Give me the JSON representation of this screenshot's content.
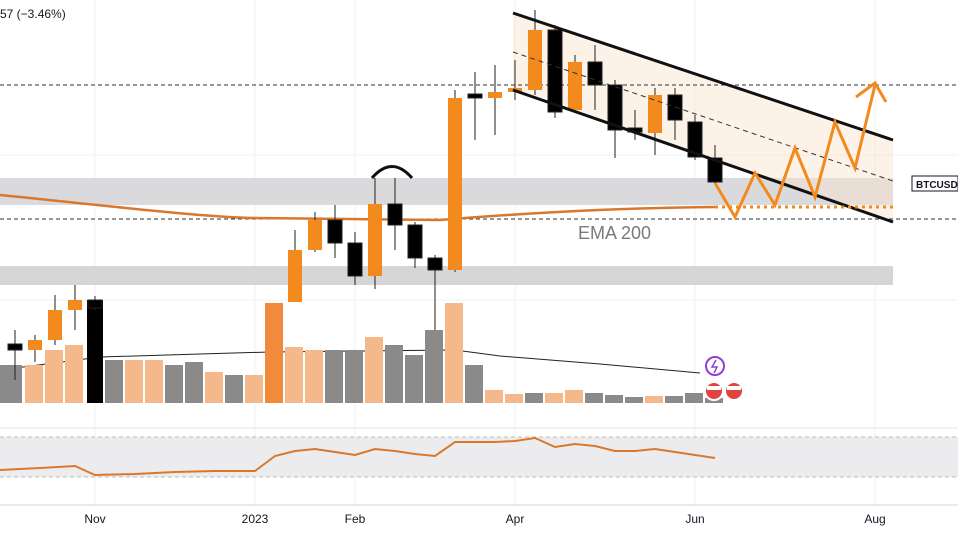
{
  "header": {
    "price_change": "57 (−3.46%)"
  },
  "symbol_label": "BTCUSD",
  "annotation": "EMA 200",
  "x_axis": {
    "labels": [
      "Nov",
      "2023",
      "Feb",
      "Apr",
      "Jun",
      "Aug"
    ]
  }
}
